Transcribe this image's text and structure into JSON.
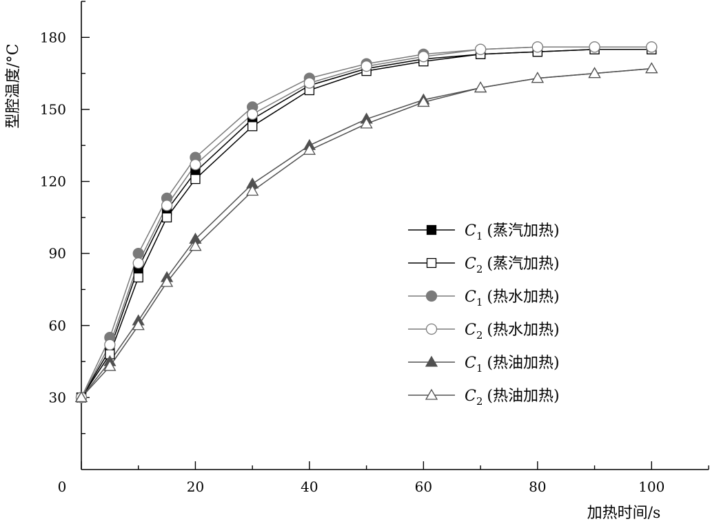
{
  "chart_data": {
    "type": "scatter",
    "title": "",
    "xlabel": "加热时间/s",
    "ylabel": "型腔温度/°C",
    "xlim": [
      0,
      110
    ],
    "ylim": [
      0,
      195
    ],
    "x_ticks": [
      0,
      20,
      40,
      60,
      80,
      100
    ],
    "y_ticks": [
      30,
      60,
      90,
      120,
      150,
      180
    ],
    "grid": false,
    "legend_position": "center-right",
    "series": [
      {
        "name": "C1 (蒸汽加热)",
        "label_var": "C",
        "label_sub": "1",
        "label_text": "(蒸汽加热)",
        "marker": "square-filled",
        "color": "#000000",
        "x": [
          0,
          5,
          10,
          15,
          20,
          30,
          40,
          50,
          60,
          70,
          80,
          90,
          100
        ],
        "y": [
          30,
          50,
          84,
          108,
          124,
          146,
          160,
          167,
          171,
          173,
          174,
          175,
          175
        ]
      },
      {
        "name": "C2 (蒸汽加热)",
        "label_var": "C",
        "label_sub": "2",
        "label_text": "(蒸汽加热)",
        "marker": "square-open",
        "color": "#000000",
        "x": [
          0,
          5,
          10,
          15,
          20,
          30,
          40,
          50,
          60,
          70,
          80,
          90,
          100
        ],
        "y": [
          30,
          48,
          80,
          105,
          121,
          143,
          158,
          166,
          170,
          173,
          174,
          175,
          175
        ]
      },
      {
        "name": "C1 (热水加热)",
        "label_var": "C",
        "label_sub": "1",
        "label_text": "(热水加热)",
        "marker": "circle-filled",
        "color": "#7a7a7a",
        "x": [
          0,
          5,
          10,
          15,
          20,
          30,
          40,
          50,
          60,
          70,
          80,
          90,
          100
        ],
        "y": [
          30,
          55,
          90,
          113,
          130,
          151,
          163,
          169,
          173,
          175,
          176,
          176,
          176
        ]
      },
      {
        "name": "C2 (热水加热)",
        "label_var": "C",
        "label_sub": "2",
        "label_text": "(热水加热)",
        "marker": "circle-open",
        "color": "#7a7a7a",
        "x": [
          0,
          5,
          10,
          15,
          20,
          30,
          40,
          50,
          60,
          70,
          80,
          90,
          100
        ],
        "y": [
          30,
          52,
          86,
          110,
          127,
          148,
          161,
          168,
          172,
          175,
          176,
          176,
          176
        ]
      },
      {
        "name": "C1 (热油加热)",
        "label_var": "C",
        "label_sub": "1",
        "label_text": "(热油加热)",
        "marker": "triangle-filled",
        "color": "#505050",
        "x": [
          0,
          5,
          10,
          15,
          20,
          30,
          40,
          50,
          60,
          70,
          80,
          90,
          100
        ],
        "y": [
          30,
          45,
          62,
          80,
          96,
          119,
          135,
          146,
          154,
          159,
          163,
          165,
          167
        ]
      },
      {
        "name": "C2 (热油加热)",
        "label_var": "C",
        "label_sub": "2",
        "label_text": "(热油加热)",
        "marker": "triangle-open",
        "color": "#505050",
        "x": [
          0,
          5,
          10,
          15,
          20,
          30,
          40,
          50,
          60,
          70,
          80,
          90,
          100
        ],
        "y": [
          30,
          43,
          60,
          78,
          93,
          116,
          133,
          144,
          153,
          159,
          163,
          165,
          167
        ]
      }
    ]
  }
}
